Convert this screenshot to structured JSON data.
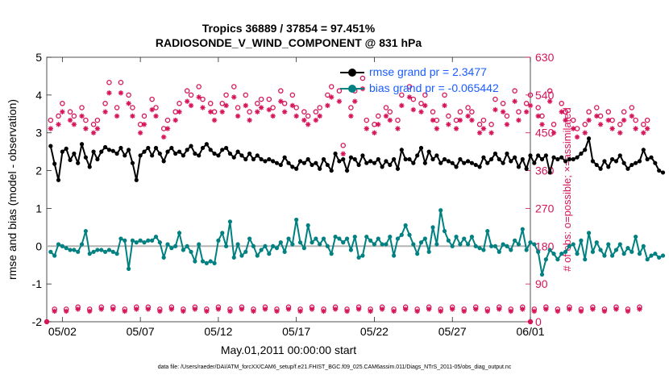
{
  "title_line1": "Tropics 36889 / 37854 = 97.451%",
  "title_line2": "RADIOSONDE_V_WIND_COMPONENT @ 831 hPa",
  "xlabel": "May.01,2011 00:00:00 start",
  "footer": "data file: /Users/raeder/DAI/ATM_forcXX/CAM6_setup/f.e21.FHIST_BGC.f09_025.CAM6assim.011/Diags_NTrS_2011-05/obs_diag_output.nc",
  "colors": {
    "rmse": "#000000",
    "bias": "#008080",
    "obs": "#d6145a",
    "zero_line": "#b4b4b4",
    "legend_text": "#1a5cff"
  },
  "legend": {
    "rmse": "rmse grand pr = 2.3477",
    "bias": "bias grand pr = -0.065442"
  },
  "chart_data": {
    "type": "line",
    "title": "Tropics 36889 / 37854 = 97.451% RADIOSONDE_V_WIND_COMPONENT @ 831 hPa",
    "xlabel": "May.01,2011 00:00:00 start",
    "ylabel_left": "rmse and bias (model - observation)",
    "ylabel_right": "# of obs: o=possible; ×=assimilated",
    "ylim_left": [
      -2,
      5
    ],
    "ylim_right": [
      0,
      630
    ],
    "xlim_days": [
      1,
      32
    ],
    "x_step_days": 0.25,
    "x_start_day": 1.25,
    "x_tick_days": [
      2,
      7,
      12,
      17,
      22,
      27,
      32
    ],
    "x_tick_labels": [
      "05/02",
      "05/07",
      "05/12",
      "05/17",
      "05/22",
      "05/27",
      "06/01"
    ],
    "y_left_ticks": [
      -2,
      -1,
      0,
      1,
      2,
      3,
      4,
      5
    ],
    "y_right_ticks": [
      0,
      90,
      180,
      270,
      360,
      450,
      540,
      630
    ],
    "series": [
      {
        "name": "rmse",
        "axis": "left",
        "values": [
          2.65,
          2.18,
          1.75,
          2.5,
          2.58,
          2.28,
          2.45,
          2.2,
          2.7,
          2.35,
          2.1,
          2.5,
          2.3,
          2.5,
          2.62,
          2.55,
          2.52,
          2.45,
          2.6,
          2.4,
          2.55,
          2.2,
          1.75,
          2.4,
          2.5,
          2.6,
          2.4,
          2.6,
          2.45,
          2.25,
          2.5,
          2.6,
          2.45,
          2.5,
          2.4,
          2.55,
          2.65,
          2.45,
          2.4,
          2.6,
          2.7,
          2.55,
          2.45,
          2.4,
          2.55,
          2.6,
          2.45,
          2.35,
          2.5,
          2.4,
          2.3,
          2.45,
          2.3,
          2.4,
          2.3,
          2.25,
          2.3,
          2.25,
          2.2,
          2.15,
          2.35,
          2.2,
          2.1,
          2.05,
          2.25,
          2.2,
          2.3,
          2.15,
          2.2,
          2.05,
          2.3,
          2.15,
          2.0,
          2.45,
          2.25,
          2.3,
          2.0,
          2.35,
          2.3,
          2.15,
          2.4,
          2.2,
          2.25,
          2.2,
          2.3,
          2.1,
          2.25,
          2.15,
          2.3,
          2.05,
          2.55,
          2.3,
          2.3,
          2.2,
          2.4,
          2.6,
          2.2,
          2.5,
          2.3,
          2.4,
          2.2,
          2.3,
          2.25,
          2.2,
          2.1,
          2.3,
          2.2,
          2.25,
          2.2,
          2.15,
          2.1,
          2.35,
          2.2,
          2.3,
          2.45,
          2.3,
          2.2,
          2.45,
          2.25,
          2.35,
          2.1,
          2.3,
          2.05,
          2.4,
          2.2,
          2.4,
          2.3,
          2.4,
          1.95,
          2.35,
          2.3,
          2.35,
          2.25,
          2.3,
          2.3,
          2.35,
          2.45,
          2.55,
          2.85,
          2.25,
          2.15,
          2.05,
          2.25,
          2.1,
          2.3,
          2.25,
          2.4,
          2.2,
          2.05,
          2.15,
          2.2,
          2.25,
          2.55,
          2.3,
          2.35,
          2.2,
          2.0,
          1.95
        ]
      },
      {
        "name": "bias",
        "axis": "left",
        "values": [
          -0.15,
          -0.25,
          0.05,
          0.0,
          -0.05,
          -0.1,
          -0.1,
          -0.15,
          0.05,
          0.4,
          -0.2,
          -0.15,
          -0.1,
          -0.1,
          -0.15,
          -0.1,
          -0.15,
          -0.2,
          0.2,
          0.15,
          -0.6,
          0.15,
          0.1,
          0.15,
          0.1,
          0.15,
          0.15,
          0.25,
          0.1,
          -0.3,
          0.05,
          -0.05,
          0.0,
          0.35,
          -0.1,
          0.0,
          -0.15,
          -0.4,
          0.05,
          -0.4,
          -0.45,
          -0.4,
          -0.45,
          0.15,
          0.35,
          0.0,
          0.65,
          -0.3,
          0.05,
          -0.25,
          -0.15,
          0.2,
          0.0,
          -0.25,
          -0.1,
          0.0,
          -0.2,
          0.0,
          -0.05,
          0.1,
          -0.15,
          0.2,
          0.05,
          0.7,
          0.1,
          -0.05,
          0.55,
          0.1,
          0.2,
          0.05,
          0.2,
          0.0,
          -0.2,
          0.25,
          0.2,
          0.1,
          0.2,
          -0.1,
          0.25,
          -0.3,
          -0.25,
          0.25,
          0.15,
          0.05,
          0.2,
          0.05,
          0.05,
          0.25,
          -0.25,
          0.2,
          0.3,
          0.55,
          0.3,
          0.05,
          -0.2,
          0.1,
          0.2,
          -0.15,
          0.5,
          0.05,
          0.95,
          0.4,
          0.15,
          0.0,
          0.25,
          0.05,
          0.2,
          0.05,
          0.25,
          0.0,
          -0.05,
          -0.1,
          0.4,
          0.0,
          0.0,
          -0.15,
          0.05,
          0.0,
          -0.1,
          0.15,
          0.05,
          0.45,
          -0.1,
          0.1,
          0.05,
          -0.15,
          -0.75,
          -0.35,
          -0.1,
          -0.2,
          -0.35,
          -0.2,
          -0.15,
          0.0,
          0.05,
          -0.2,
          0.15,
          -0.35,
          0.35,
          -0.15,
          0.1,
          -0.1,
          -0.25,
          0.05,
          -0.25,
          -0.1,
          0.05,
          -0.2,
          -0.05,
          -0.15,
          0.25,
          -0.2,
          0.0,
          -0.35,
          -0.25,
          -0.2,
          -0.3,
          -0.25
        ]
      },
      {
        "name": "possible",
        "axis": "right",
        "marker": "o",
        "values": [
          480,
          30,
          490,
          520,
          30,
          500,
          490,
          35,
          510,
          480,
          30,
          470,
          480,
          35,
          520,
          570,
          35,
          510,
          570,
          30,
          540,
          510,
          35,
          470,
          490,
          35,
          530,
          510,
          30,
          460,
          480,
          35,
          500,
          520,
          30,
          550,
          540,
          35,
          560,
          530,
          30,
          520,
          500,
          35,
          520,
          540,
          30,
          560,
          510,
          35,
          540,
          500,
          30,
          520,
          530,
          35,
          530,
          510,
          30,
          550,
          520,
          35,
          540,
          510,
          30,
          500,
          490,
          35,
          500,
          510,
          30,
          540,
          560,
          35,
          550,
          420,
          30,
          510,
          550,
          35,
          580,
          480,
          30,
          470,
          490,
          35,
          510,
          500,
          30,
          480,
          540,
          35,
          560,
          530,
          30,
          520,
          540,
          35,
          500,
          480,
          30,
          540,
          490,
          35,
          480,
          500,
          30,
          510,
          500,
          35,
          470,
          480,
          30,
          470,
          530,
          35,
          520,
          490,
          30,
          550,
          500,
          35,
          520,
          540,
          30,
          510,
          490,
          35,
          550,
          470,
          30,
          520,
          500,
          35,
          480,
          460,
          30,
          470,
          500,
          35,
          510,
          490,
          30,
          500,
          480,
          35,
          470,
          500,
          30,
          510,
          480,
          35,
          470,
          480
        ]
      },
      {
        "name": "assimilated",
        "axis": "right",
        "marker": "x",
        "values": [
          460,
          25,
          470,
          500,
          25,
          480,
          470,
          30,
          490,
          460,
          25,
          450,
          460,
          30,
          500,
          545,
          30,
          490,
          545,
          25,
          520,
          490,
          30,
          450,
          470,
          30,
          505,
          490,
          25,
          440,
          460,
          30,
          480,
          500,
          25,
          525,
          515,
          30,
          535,
          510,
          25,
          500,
          480,
          30,
          500,
          515,
          25,
          535,
          490,
          30,
          515,
          480,
          25,
          500,
          510,
          30,
          505,
          490,
          25,
          525,
          500,
          30,
          515,
          490,
          25,
          480,
          470,
          30,
          480,
          490,
          25,
          515,
          535,
          30,
          525,
          400,
          25,
          490,
          525,
          30,
          555,
          460,
          25,
          450,
          470,
          30,
          490,
          480,
          25,
          460,
          515,
          30,
          535,
          505,
          25,
          500,
          515,
          30,
          480,
          460,
          25,
          515,
          470,
          30,
          460,
          480,
          25,
          490,
          480,
          30,
          450,
          460,
          25,
          450,
          505,
          30,
          500,
          470,
          25,
          525,
          480,
          30,
          500,
          515,
          25,
          490,
          470,
          30,
          525,
          450,
          25,
          500,
          480,
          30,
          460,
          440,
          25,
          450,
          480,
          30,
          490,
          470,
          25,
          480,
          460,
          30,
          450,
          480,
          25,
          490,
          460,
          30,
          450,
          460
        ]
      }
    ]
  }
}
